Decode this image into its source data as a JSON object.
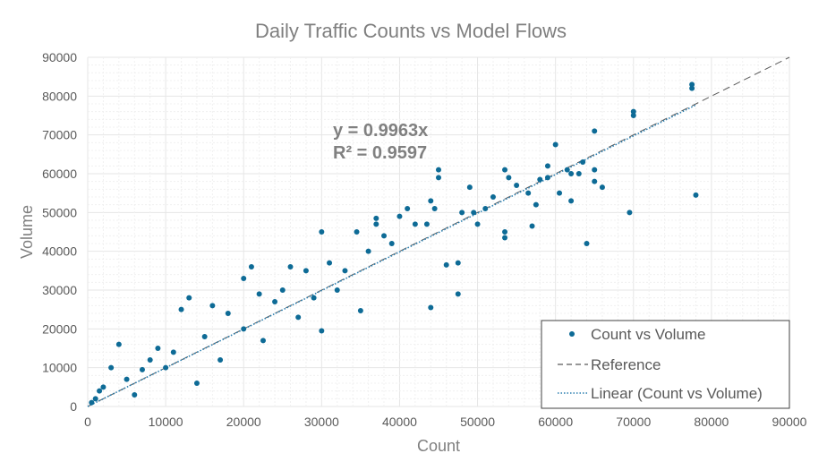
{
  "chart_data": {
    "type": "scatter",
    "title": "Daily Traffic Counts vs Model Flows",
    "xlabel": "Count",
    "ylabel": "Volume",
    "xlim": [
      0,
      90000
    ],
    "ylim": [
      0,
      90000
    ],
    "x_ticks": [
      "0",
      "10000",
      "20000",
      "30000",
      "40000",
      "50000",
      "60000",
      "70000",
      "80000",
      "90000"
    ],
    "y_ticks": [
      "0",
      "10000",
      "20000",
      "30000",
      "40000",
      "50000",
      "60000",
      "70000",
      "80000",
      "90000"
    ],
    "grid": true,
    "legend_position": "bottom-right",
    "colors": {
      "points": "#0e6b96",
      "reference": "#595959",
      "trend": "#2a7fb0",
      "grid": "#e6e6e6"
    },
    "equation": {
      "line1": "y = 0.9963x",
      "line2": "R² = 0.9597"
    },
    "series": [
      {
        "name": "Count vs Volume",
        "kind": "scatter",
        "points": [
          [
            77500,
            83000
          ],
          [
            77500,
            82000
          ],
          [
            70000,
            76000
          ],
          [
            70000,
            75000
          ],
          [
            65000,
            71000
          ],
          [
            78000,
            54500
          ],
          [
            69500,
            50000
          ],
          [
            64000,
            42000
          ],
          [
            60000,
            67500
          ],
          [
            61500,
            61000
          ],
          [
            59000,
            62000
          ],
          [
            63500,
            63000
          ],
          [
            62000,
            60000
          ],
          [
            65000,
            61000
          ],
          [
            66000,
            56500
          ],
          [
            65000,
            58000
          ],
          [
            60500,
            55000
          ],
          [
            62000,
            53000
          ],
          [
            63000,
            60000
          ],
          [
            57500,
            52000
          ],
          [
            57000,
            46500
          ],
          [
            59000,
            59000
          ],
          [
            58000,
            58500
          ],
          [
            55000,
            57000
          ],
          [
            54000,
            59000
          ],
          [
            53500,
            61000
          ],
          [
            56500,
            55000
          ],
          [
            52000,
            54000
          ],
          [
            51000,
            51000
          ],
          [
            49000,
            56500
          ],
          [
            53500,
            45000
          ],
          [
            53500,
            43500
          ],
          [
            50000,
            47000
          ],
          [
            49500,
            50000
          ],
          [
            48000,
            50000
          ],
          [
            47500,
            37000
          ],
          [
            46000,
            36500
          ],
          [
            47500,
            29000
          ],
          [
            44000,
            25500
          ],
          [
            45000,
            61000
          ],
          [
            45000,
            59000
          ],
          [
            44000,
            53000
          ],
          [
            44500,
            51000
          ],
          [
            41000,
            51000
          ],
          [
            40000,
            49000
          ],
          [
            42000,
            47000
          ],
          [
            43500,
            47000
          ],
          [
            37000,
            48500
          ],
          [
            37000,
            47000
          ],
          [
            39000,
            42000
          ],
          [
            38000,
            44000
          ],
          [
            34500,
            45000
          ],
          [
            30000,
            45000
          ],
          [
            30000,
            19500
          ],
          [
            35000,
            24700
          ],
          [
            36000,
            40000
          ],
          [
            33000,
            35000
          ],
          [
            31000,
            37000
          ],
          [
            28000,
            35000
          ],
          [
            26000,
            36000
          ],
          [
            25000,
            30000
          ],
          [
            24000,
            27000
          ],
          [
            22000,
            29000
          ],
          [
            21000,
            36000
          ],
          [
            20000,
            33000
          ],
          [
            20000,
            20000
          ],
          [
            18000,
            24000
          ],
          [
            15000,
            18000
          ],
          [
            13000,
            28000
          ],
          [
            12000,
            25000
          ],
          [
            10000,
            10000
          ],
          [
            8000,
            12000
          ],
          [
            5000,
            7000
          ],
          [
            4000,
            16000
          ],
          [
            2000,
            5000
          ],
          [
            1000,
            2000
          ],
          [
            500,
            1000
          ],
          [
            7000,
            9500
          ],
          [
            9000,
            15000
          ],
          [
            11000,
            14000
          ],
          [
            16000,
            26000
          ],
          [
            27000,
            23000
          ],
          [
            32000,
            30000
          ],
          [
            29000,
            28000
          ],
          [
            22500,
            17000
          ],
          [
            17000,
            12000
          ],
          [
            14000,
            6000
          ],
          [
            6000,
            3000
          ],
          [
            3000,
            10000
          ],
          [
            1500,
            4000
          ]
        ]
      },
      {
        "name": "Reference",
        "kind": "line",
        "slope": 1
      },
      {
        "name": "Linear (Count vs Volume)",
        "kind": "trendline",
        "slope": 0.9963
      }
    ]
  }
}
